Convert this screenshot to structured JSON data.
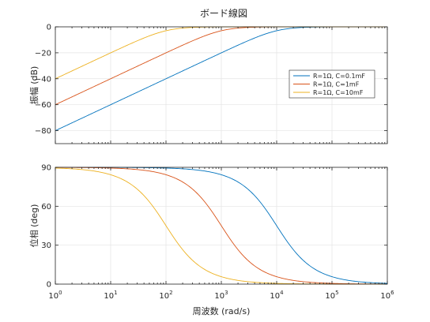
{
  "chart_data": {
    "title": "ボード線図",
    "type": "line",
    "xlabel": "周波数 (rad/s)",
    "xscale": "log",
    "xlim": [
      1,
      1000000
    ],
    "x_tick_labels": [
      {
        "base": "10",
        "exp": "0"
      },
      {
        "base": "10",
        "exp": "1"
      },
      {
        "base": "10",
        "exp": "2"
      },
      {
        "base": "10",
        "exp": "3"
      },
      {
        "base": "10",
        "exp": "4"
      },
      {
        "base": "10",
        "exp": "5"
      },
      {
        "base": "10",
        "exp": "6"
      }
    ],
    "grid": true,
    "legend": {
      "placement": "right",
      "entries": [
        "R=1Ω, C=0.1mF",
        "R=1Ω, C=1mF",
        "R=1Ω, C=10mF"
      ]
    },
    "subplots": [
      {
        "name": "magnitude",
        "ylabel": "振幅 (dB)",
        "ylim": [
          -90,
          0
        ],
        "yticks": [
          "0",
          "−20",
          "−40",
          "−60",
          "−80"
        ],
        "ytick_values": [
          0,
          -20,
          -40,
          -60,
          -80
        ],
        "series": [
          {
            "name": "R=1Ω, C=0.1mF",
            "color": "#0072BD",
            "corner_rad_s": 10000,
            "x": [
              1,
              10,
              100,
              1000,
              10000,
              100000,
              1000000
            ],
            "values": [
              -80,
              -60,
              -40,
              -20,
              -3,
              0,
              0
            ]
          },
          {
            "name": "R=1Ω, C=1mF",
            "color": "#D95319",
            "corner_rad_s": 1000,
            "x": [
              1,
              10,
              100,
              1000,
              10000,
              100000,
              1000000
            ],
            "values": [
              -60,
              -40,
              -20,
              -3,
              0,
              0,
              0
            ]
          },
          {
            "name": "R=1Ω, C=10mF",
            "color": "#EDB120",
            "corner_rad_s": 100,
            "x": [
              1,
              10,
              100,
              1000,
              10000,
              100000,
              1000000
            ],
            "values": [
              -40,
              -20,
              -3,
              0,
              0,
              0,
              0
            ]
          }
        ]
      },
      {
        "name": "phase",
        "ylabel": "位相 (deg)",
        "ylim": [
          0,
          90
        ],
        "yticks": [
          "0",
          "30",
          "60",
          "90"
        ],
        "ytick_values": [
          0,
          30,
          60,
          90
        ],
        "series": [
          {
            "name": "R=1Ω, C=0.1mF",
            "color": "#0072BD",
            "corner_rad_s": 10000,
            "x": [
              1,
              10,
              100,
              1000,
              10000,
              100000,
              1000000
            ],
            "values": [
              90,
              90,
              89.4,
              84.3,
              45,
              5.7,
              0.6
            ]
          },
          {
            "name": "R=1Ω, C=1mF",
            "color": "#D95319",
            "corner_rad_s": 1000,
            "x": [
              1,
              10,
              100,
              1000,
              10000,
              100000,
              1000000
            ],
            "values": [
              90,
              89.4,
              84.3,
              45,
              5.7,
              0.6,
              0
            ]
          },
          {
            "name": "R=1Ω, C=10mF",
            "color": "#EDB120",
            "corner_rad_s": 100,
            "x": [
              1,
              10,
              100,
              1000,
              10000,
              100000,
              1000000
            ],
            "values": [
              89.4,
              84.3,
              45,
              5.7,
              0.6,
              0,
              0
            ]
          }
        ]
      }
    ]
  }
}
